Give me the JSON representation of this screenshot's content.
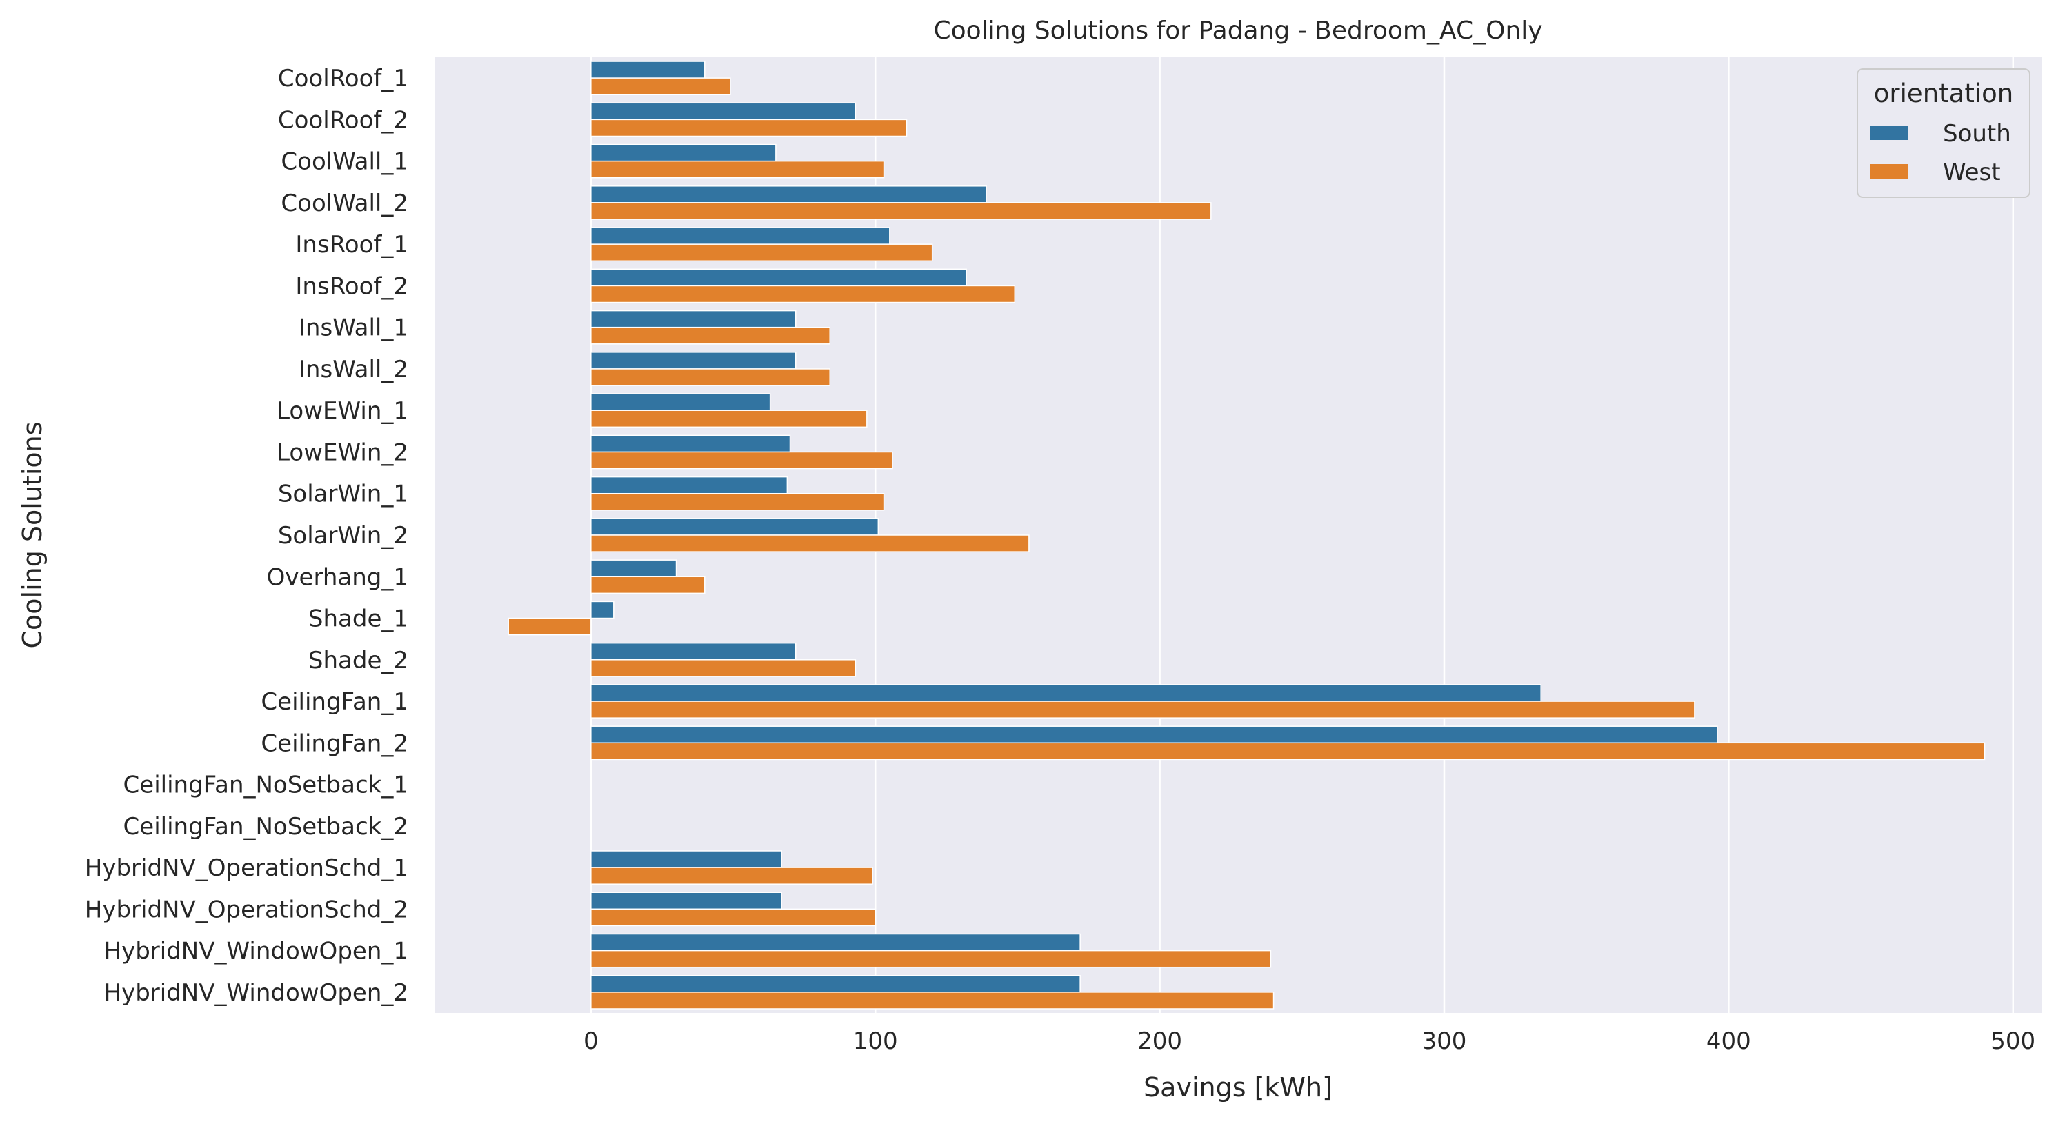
{
  "chart_data": {
    "type": "bar",
    "orientation": "horizontal",
    "title": "Cooling Solutions for Padang - Bedroom_AC_Only",
    "xlabel": "Savings [kWh]",
    "ylabel": "Cooling Solutions",
    "xlim": [
      -55,
      510
    ],
    "xticks": [
      0,
      100,
      200,
      300,
      400,
      500
    ],
    "grid": true,
    "legend": {
      "title": "orientation",
      "placement": "top-right"
    },
    "categories": [
      "CoolRoof_1",
      "CoolRoof_2",
      "CoolWall_1",
      "CoolWall_2",
      "InsRoof_1",
      "InsRoof_2",
      "InsWall_1",
      "InsWall_2",
      "LowEWin_1",
      "LowEWin_2",
      "SolarWin_1",
      "SolarWin_2",
      "Overhang_1",
      "Shade_1",
      "Shade_2",
      "CeilingFan_1",
      "CeilingFan_2",
      "CeilingFan_NoSetback_1",
      "CeilingFan_NoSetback_2",
      "HybridNV_OperationSchd_1",
      "HybridNV_OperationSchd_2",
      "HybridNV_WindowOpen_1",
      "HybridNV_WindowOpen_2"
    ],
    "series": [
      {
        "name": "South",
        "color": "#3274a1",
        "values": [
          40,
          93,
          65,
          139,
          105,
          132,
          72,
          72,
          63,
          70,
          69,
          101,
          30,
          8,
          72,
          334,
          396,
          null,
          null,
          67,
          67,
          172,
          172
        ]
      },
      {
        "name": "West",
        "color": "#e1812c",
        "values": [
          49,
          111,
          103,
          218,
          120,
          149,
          84,
          84,
          97,
          106,
          103,
          154,
          40,
          -29,
          93,
          388,
          490,
          null,
          null,
          99,
          100,
          239,
          240
        ]
      }
    ]
  }
}
